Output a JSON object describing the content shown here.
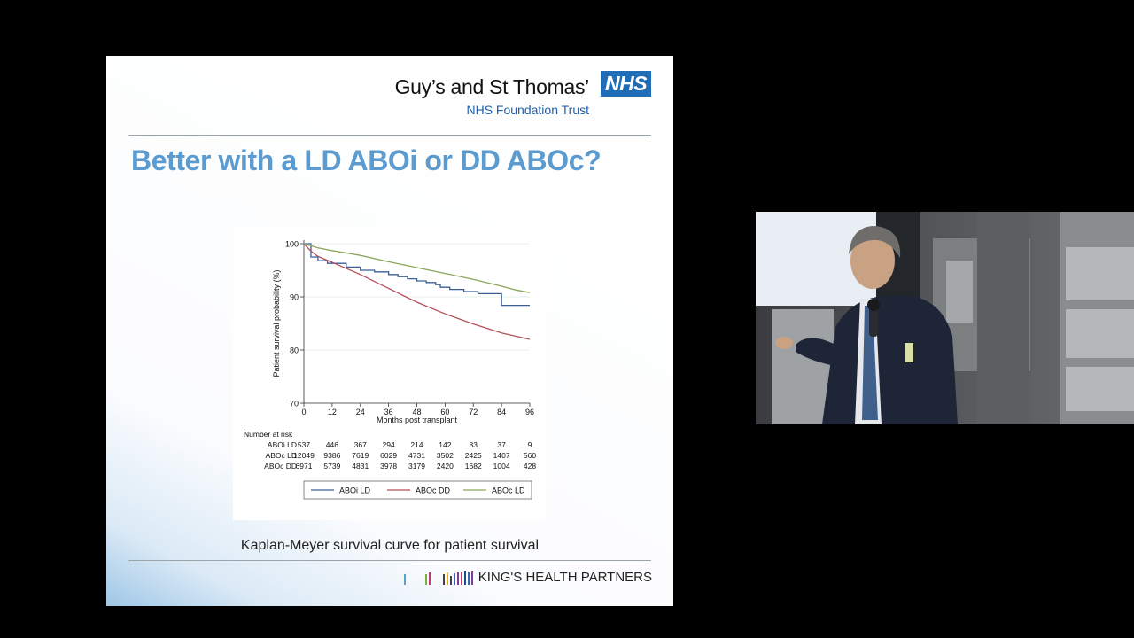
{
  "slide": {
    "trust_name": "Guy’s and St Thomas’",
    "nhs_mark": "NHS",
    "trust_subtitle": "NHS Foundation Trust",
    "title": "Better with a LD ABOi or DD ABOc?",
    "caption": "Kaplan-Meyer survival curve for patient survival",
    "footer_logo": "KING'S HEALTH PARTNERS"
  },
  "chart_data": {
    "type": "line",
    "title": "",
    "xlabel": "Months post transplant",
    "ylabel": "Patient survival probability (%)",
    "xlim": [
      0,
      96
    ],
    "ylim": [
      70,
      100
    ],
    "xticks": [
      0,
      12,
      24,
      36,
      48,
      60,
      72,
      84,
      96
    ],
    "yticks": [
      70,
      80,
      90,
      100
    ],
    "grid": true,
    "legend_position": "bottom",
    "series": [
      {
        "name": "ABOi LD",
        "color": "#3a5f95",
        "x": [
          0,
          3,
          6,
          10,
          18,
          24,
          30,
          36,
          40,
          44,
          48,
          52,
          56,
          58,
          62,
          68,
          74,
          80,
          84,
          88,
          96
        ],
        "y": [
          100,
          97.5,
          96.8,
          96.3,
          95.6,
          95.0,
          94.7,
          94.2,
          93.8,
          93.4,
          93.0,
          92.7,
          92.3,
          91.8,
          91.4,
          91.0,
          90.6,
          90.6,
          88.4,
          88.4,
          88.4
        ]
      },
      {
        "name": "ABOc DD",
        "color": "#b3505b",
        "x": [
          0,
          3,
          6,
          12,
          24,
          36,
          48,
          60,
          72,
          84,
          90,
          96
        ],
        "y": [
          100,
          98.6,
          97.6,
          96.5,
          94.2,
          91.6,
          89.0,
          86.8,
          84.9,
          83.2,
          82.6,
          82.0
        ]
      },
      {
        "name": "ABOc LD",
        "color": "#8aa65a",
        "x": [
          0,
          6,
          12,
          24,
          36,
          48,
          60,
          72,
          84,
          90,
          96
        ],
        "y": [
          100,
          99.2,
          98.7,
          97.8,
          96.6,
          95.5,
          94.4,
          93.3,
          92.0,
          91.3,
          90.8
        ]
      }
    ],
    "risk_table": {
      "header": "Number at risk",
      "rows": [
        {
          "label": "ABOi LD",
          "values": [
            "537",
            "446",
            "367",
            "294",
            "214",
            "142",
            "83",
            "37",
            "9"
          ]
        },
        {
          "label": "ABOc LD",
          "values": [
            "12049",
            "9386",
            "7619",
            "6029",
            "4731",
            "3502",
            "2425",
            "1407",
            "560"
          ]
        },
        {
          "label": "ABOc DD",
          "values": [
            "6971",
            "5739",
            "4831",
            "3978",
            "3179",
            "2420",
            "1682",
            "1004",
            "428"
          ]
        }
      ]
    },
    "legend": [
      "ABOi LD",
      "ABOc DD",
      "ABOc LD"
    ]
  }
}
